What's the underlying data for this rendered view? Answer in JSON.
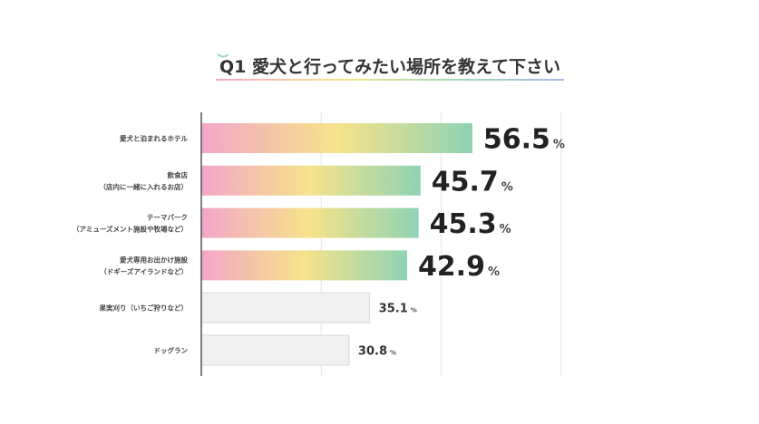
{
  "chart_data": {
    "type": "bar",
    "orientation": "horizontal",
    "title": "Q1 愛犬と行ってみたい場所を教えて下さい",
    "categories": [
      [
        "愛犬と泊まれるホテル"
      ],
      [
        "飲食店",
        "（店内に一緒に入れるお店）"
      ],
      [
        "テーマパーク",
        "（アミューズメント施設や牧場など）"
      ],
      [
        "愛犬専用お出かけ施設",
        "（ドギーズアイランドなど）"
      ],
      [
        "果実刈り（いちご狩りなど）"
      ],
      [
        "ドッグラン"
      ]
    ],
    "values": [
      56.5,
      45.7,
      45.3,
      42.9,
      35.1,
      30.8
    ],
    "unit": "%",
    "highlight_top": 4,
    "xlim": [
      0,
      100
    ],
    "grid": true,
    "grid_step": 25,
    "colors": {
      "gradient": [
        "#f3a6c9",
        "#f6e38a",
        "#8fd3b3"
      ],
      "muted_bar": "#f1f1f1",
      "muted_border": "#d9d9d9",
      "grid": "#e6e6e6",
      "axis": "#555555",
      "title_underline": [
        "#f3a6c9",
        "#f6e38a",
        "#9fd8b8",
        "#a9b8e6"
      ]
    }
  }
}
